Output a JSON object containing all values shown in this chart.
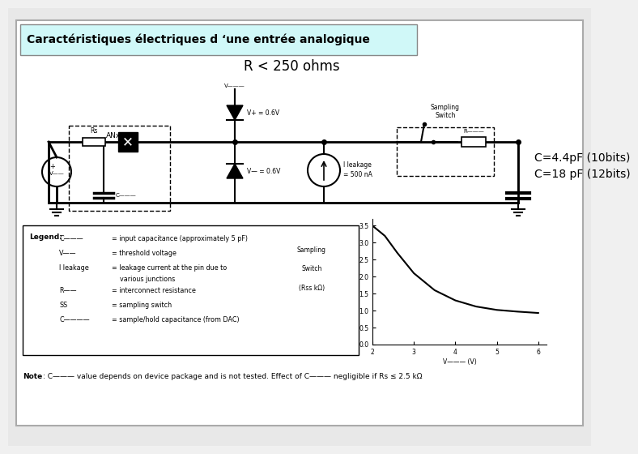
{
  "title": "Caractéristiques électriques d ‘une entrée analogique",
  "title_bg": "#d0f8f8",
  "slide_bg": "#ffffff",
  "r_label": "R < 250 ohms",
  "c_label1": "C=4.4pF (10bits)",
  "c_label2": "C=18 pF (12bits)",
  "note_bold": "Note",
  "note_rest": ": C——— value depends on device package and is not tested. Effect of C——— negligible if Rs ≤ 2.5 kΩ",
  "graph_x": [
    2,
    2.3,
    2.6,
    3.0,
    3.5,
    4.0,
    4.5,
    5.0,
    5.5,
    6.0
  ],
  "graph_y": [
    3.5,
    3.2,
    2.7,
    2.1,
    1.6,
    1.3,
    1.12,
    1.02,
    0.97,
    0.93
  ],
  "graph_xlabel": "V——— (V)",
  "graph_ylabel_line1": "Sampling",
  "graph_ylabel_line2": "Switch",
  "graph_ylabel_line3": "(Rss kΩ)",
  "graph_yticks": [
    0,
    0.5,
    1.0,
    1.5,
    2.0,
    2.5,
    3.0,
    3.5
  ],
  "graph_xticks": [
    2,
    3,
    4,
    5,
    6
  ],
  "legend_rows": [
    [
      "C———",
      "= input capacitance (approximately 5 pF)"
    ],
    [
      "V——",
      "= threshold voltage"
    ],
    [
      "I leakage",
      "= leakage current at the pin due to\nvarious junctions"
    ],
    [
      "R——",
      "= interconnect resistance"
    ],
    [
      "SS",
      "= sampling switch"
    ],
    [
      "C————",
      "= sample/hold capacitance (from DAC)"
    ]
  ]
}
